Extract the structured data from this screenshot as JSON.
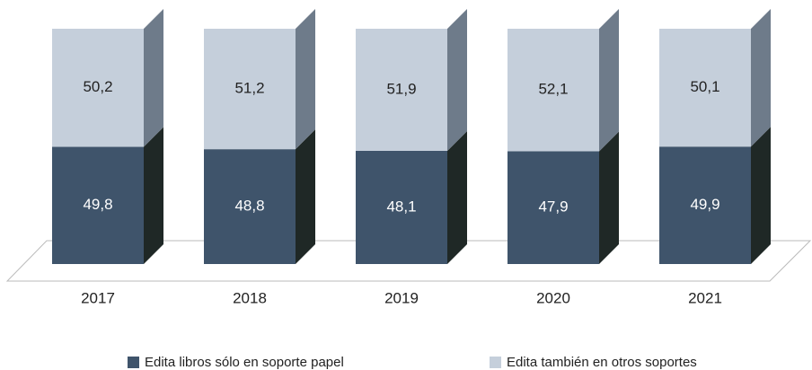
{
  "chart_data": {
    "type": "stacked-bar-3d",
    "categories": [
      "2017",
      "2018",
      "2019",
      "2020",
      "2021"
    ],
    "series": [
      {
        "name": "Edita libros sólo en soporte papel",
        "color": "#3f546b",
        "side_color": "#1f2826",
        "label_color": "#ffffff",
        "values": [
          49.8,
          48.8,
          48.1,
          47.9,
          49.9
        ],
        "value_labels": [
          "49,8",
          "48,8",
          "48,1",
          "47,9",
          "49,9"
        ]
      },
      {
        "name": "Edita también en otros soportes",
        "color": "#c5cfdb",
        "side_color": "#6e7b8a",
        "label_color": "#222222",
        "values": [
          50.2,
          51.2,
          51.9,
          52.1,
          50.1
        ],
        "value_labels": [
          "50,2",
          "51,2",
          "51,9",
          "52,1",
          "50,1"
        ]
      }
    ]
  }
}
